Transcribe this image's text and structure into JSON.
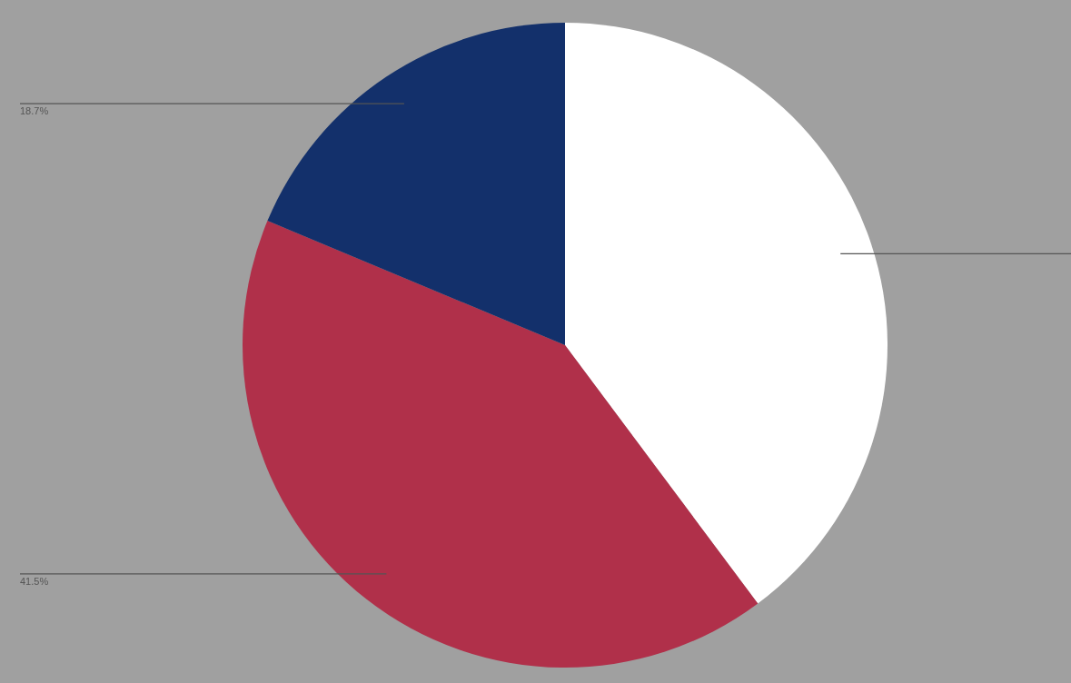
{
  "chart_data": {
    "type": "pie",
    "categories": [
      null,
      null,
      null
    ],
    "values": [
      39.8,
      41.5,
      18.7
    ],
    "colors": [
      "#ffffff",
      "#b0304a",
      "#13306b"
    ],
    "value_labels": [
      null,
      "41.5%",
      "18.7%"
    ]
  }
}
